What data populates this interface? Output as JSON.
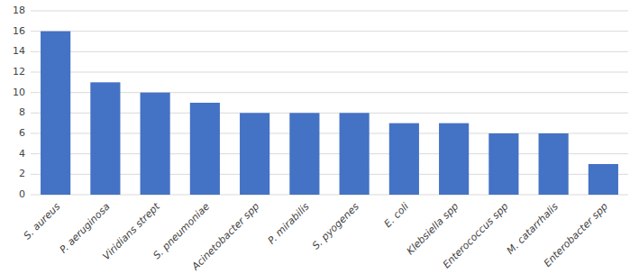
{
  "chart_data": {
    "type": "bar",
    "categories": [
      "S. aureus",
      "P. aeruginosa",
      "Viridians strept",
      "S. pneumoniae",
      "Acinetobacter spp",
      "P. mirabilis",
      "S. pyogenes",
      "E. coli",
      "Klebsiella spp",
      "Enterococcus spp",
      "M. catarrhalis",
      "Enterobacter spp"
    ],
    "values": [
      16,
      11,
      10,
      9,
      8,
      8,
      8,
      7,
      7,
      6,
      6,
      3
    ],
    "color": "#4472C4",
    "ylim": [
      0,
      18
    ],
    "yticks": [
      0,
      2,
      4,
      6,
      8,
      10,
      12,
      14,
      16,
      18
    ],
    "grid": true
  }
}
